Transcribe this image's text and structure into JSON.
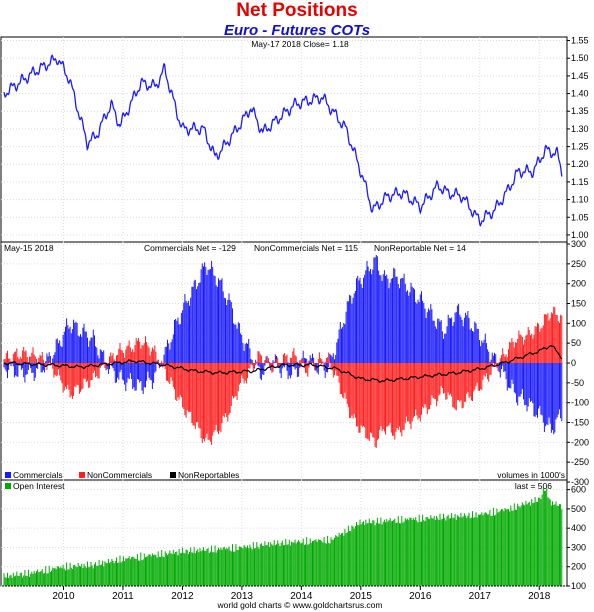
{
  "header": {
    "title": "Net Positions",
    "subtitle": "Euro - Futures COTs"
  },
  "chart_data": [
    {
      "type": "line",
      "panel": "price",
      "annotation": "May-17  2018   Close= 1.18",
      "ylim": [
        0.98,
        1.56
      ],
      "yticks": [
        "1.55",
        "1.50",
        "1.45",
        "1.40",
        "1.35",
        "1.30",
        "1.25",
        "1.20",
        "1.15",
        "1.10",
        "1.05",
        "1.00"
      ],
      "series": [
        {
          "color": "#1a1aff",
          "x": [
            2009.0,
            2009.25,
            2009.5,
            2009.9,
            2010.1,
            2010.4,
            2010.55,
            2010.8,
            2010.95,
            2011.1,
            2011.3,
            2011.55,
            2011.7,
            2011.9,
            2012.0,
            2012.35,
            2012.55,
            2012.7,
            2013.0,
            2013.15,
            2013.35,
            2013.55,
            2013.9,
            2014.35,
            2014.75,
            2015.0,
            2015.2,
            2015.45,
            2015.7,
            2016.0,
            2016.3,
            2016.45,
            2016.7,
            2016.95,
            2017.0,
            2017.25,
            2017.45,
            2017.65,
            2017.9,
            2018.1,
            2018.3,
            2018.38
          ],
          "y": [
            1.4,
            1.43,
            1.46,
            1.5,
            1.44,
            1.26,
            1.28,
            1.37,
            1.31,
            1.36,
            1.43,
            1.42,
            1.47,
            1.35,
            1.3,
            1.3,
            1.22,
            1.25,
            1.32,
            1.36,
            1.29,
            1.32,
            1.37,
            1.39,
            1.3,
            1.18,
            1.07,
            1.11,
            1.12,
            1.08,
            1.14,
            1.12,
            1.11,
            1.05,
            1.04,
            1.07,
            1.12,
            1.18,
            1.18,
            1.24,
            1.23,
            1.18
          ]
        }
      ]
    },
    {
      "type": "bar",
      "panel": "net",
      "date_label": "May-15  2018",
      "annotations": [
        "Commercials Net = -129",
        "NonCommercials Net = 115",
        "NonReportable Net = 14"
      ],
      "ylim": [
        -300,
        300
      ],
      "yticks": [
        "300",
        "250",
        "200",
        "150",
        "100",
        "50",
        "0",
        "-50",
        "-100",
        "-150",
        "-200",
        "-250",
        "-300"
      ],
      "units_note": "volumes in 1000's",
      "legend": [
        "Commercials",
        "NonCommercials",
        "NonReportables"
      ],
      "legend_position": "bottom-left",
      "colors": {
        "commercials": "#1a1aff",
        "noncommercials": "#ff2020",
        "nonreportables": "#000000"
      },
      "noncommercials_points": {
        "x": [
          2009.0,
          2009.3,
          2009.6,
          2009.85,
          2010.1,
          2010.3,
          2010.5,
          2010.75,
          2010.95,
          2011.15,
          2011.3,
          2011.5,
          2011.7,
          2011.9,
          2012.05,
          2012.2,
          2012.4,
          2012.6,
          2012.8,
          2012.95,
          2013.1,
          2013.3,
          2013.5,
          2013.7,
          2013.9,
          2014.1,
          2014.25,
          2014.45,
          2014.6,
          2014.75,
          2014.9,
          2015.1,
          2015.25,
          2015.4,
          2015.6,
          2015.8,
          2016.0,
          2016.2,
          2016.4,
          2016.6,
          2016.8,
          2017.0,
          2017.2,
          2017.4,
          2017.6,
          2017.8,
          2018.0,
          2018.2,
          2018.38
        ],
        "y": [
          10,
          25,
          15,
          -20,
          -80,
          -60,
          -40,
          5,
          30,
          40,
          55,
          35,
          -20,
          -80,
          -120,
          -150,
          -200,
          -170,
          -120,
          -60,
          -30,
          20,
          -10,
          10,
          20,
          -20,
          5,
          10,
          -40,
          -100,
          -150,
          -180,
          -200,
          -160,
          -180,
          -150,
          -130,
          -100,
          -70,
          -110,
          -90,
          -60,
          -20,
          20,
          60,
          70,
          90,
          130,
          115
        ]
      },
      "commercials_points": {
        "x": [
          2009.0,
          2009.3,
          2009.6,
          2009.85,
          2010.1,
          2010.3,
          2010.5,
          2010.75,
          2010.95,
          2011.15,
          2011.3,
          2011.5,
          2011.7,
          2011.9,
          2012.05,
          2012.2,
          2012.4,
          2012.6,
          2012.8,
          2012.95,
          2013.1,
          2013.3,
          2013.5,
          2013.7,
          2013.9,
          2014.1,
          2014.25,
          2014.45,
          2014.6,
          2014.75,
          2014.9,
          2015.1,
          2015.25,
          2015.4,
          2015.6,
          2015.8,
          2016.0,
          2016.2,
          2016.4,
          2016.6,
          2016.8,
          2017.0,
          2017.2,
          2017.4,
          2017.6,
          2017.8,
          2018.0,
          2018.2,
          2018.38
        ],
        "y": [
          -10,
          -25,
          -20,
          30,
          100,
          80,
          60,
          -10,
          -40,
          -50,
          -60,
          -40,
          20,
          100,
          150,
          190,
          250,
          210,
          150,
          80,
          40,
          -30,
          10,
          -20,
          -25,
          20,
          -10,
          -15,
          50,
          130,
          190,
          230,
          260,
          210,
          220,
          190,
          160,
          120,
          80,
          130,
          110,
          70,
          20,
          -30,
          -80,
          -100,
          -130,
          -170,
          -129
        ]
      },
      "nonreportables_points": {
        "x": [
          2009.0,
          2009.8,
          2010.3,
          2011.2,
          2011.7,
          2012.2,
          2012.6,
          2013.2,
          2013.7,
          2014.2,
          2014.6,
          2015.0,
          2015.4,
          2016.0,
          2016.6,
          2017.0,
          2017.4,
          2017.8,
          2018.0,
          2018.2,
          2018.38
        ],
        "y": [
          0,
          -5,
          -10,
          5,
          -5,
          -20,
          -25,
          -20,
          -5,
          -5,
          -15,
          -40,
          -45,
          -35,
          -25,
          -15,
          0,
          20,
          30,
          45,
          14
        ]
      }
    },
    {
      "type": "bar",
      "panel": "open_interest",
      "legend": [
        "Open Interest"
      ],
      "last_label": "last = 506",
      "ylim": [
        100,
        650
      ],
      "yticks": [
        "600",
        "500",
        "400",
        "300",
        "200",
        "100"
      ],
      "color": "#00aa00",
      "points": {
        "x": [
          2009.0,
          2009.5,
          2010.0,
          2010.5,
          2011.0,
          2011.5,
          2012.0,
          2012.5,
          2013.0,
          2013.5,
          2014.0,
          2014.5,
          2015.0,
          2015.5,
          2016.0,
          2016.5,
          2017.0,
          2017.5,
          2018.0,
          2018.1,
          2018.2,
          2018.38
        ],
        "y": [
          140,
          160,
          190,
          200,
          230,
          250,
          270,
          280,
          290,
          310,
          320,
          330,
          420,
          430,
          440,
          450,
          460,
          490,
          540,
          600,
          520,
          506
        ]
      },
      "xticks": [
        "2010",
        "2011",
        "2012",
        "2013",
        "2014",
        "2015",
        "2016",
        "2017",
        "2018"
      ],
      "credit": "world gold charts © www.goldchartsrus.com"
    }
  ]
}
